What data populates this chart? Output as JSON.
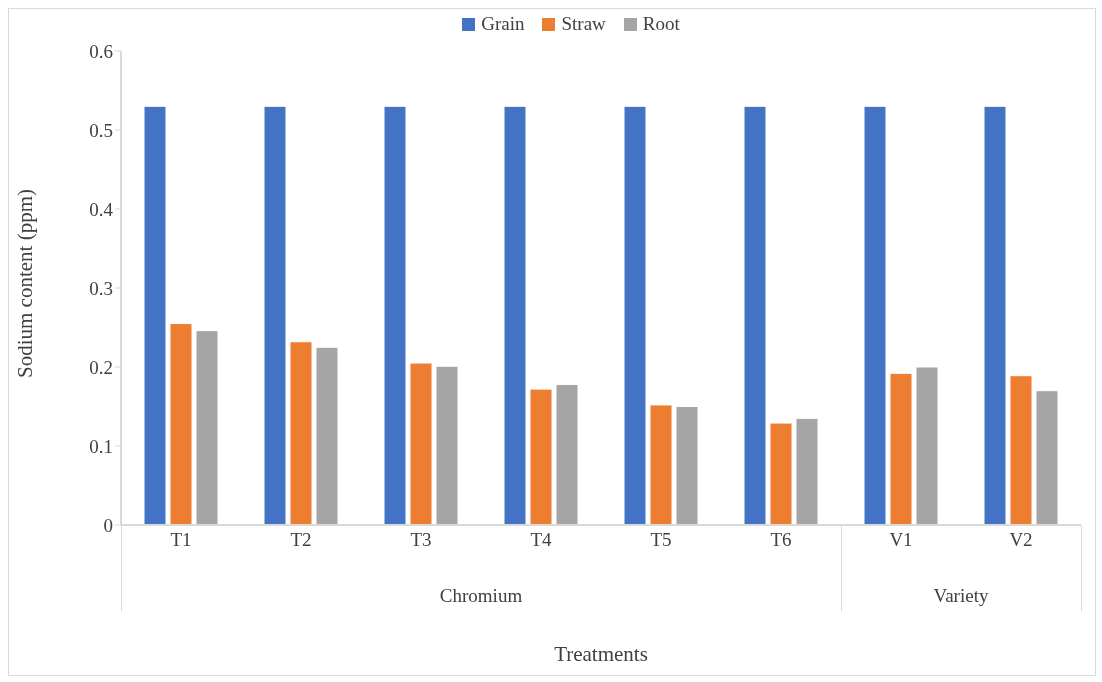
{
  "chart_data": {
    "type": "bar",
    "xlabel": "Treatments",
    "ylabel": "Sodium content (ppm)",
    "categories": [
      "T1",
      "T2",
      "T3",
      "T4",
      "T5",
      "T6",
      "V1",
      "V2"
    ],
    "series": [
      {
        "name": "Grain",
        "color": "#4472c4",
        "values": [
          0.53,
          0.53,
          0.53,
          0.53,
          0.53,
          0.53,
          0.53,
          0.53
        ]
      },
      {
        "name": "Straw",
        "color": "#ed7d31",
        "values": [
          0.255,
          0.232,
          0.205,
          0.172,
          0.152,
          0.129,
          0.192,
          0.189
        ]
      },
      {
        "name": "Root",
        "color": "#a5a5a5",
        "values": [
          0.246,
          0.225,
          0.201,
          0.178,
          0.15,
          0.135,
          0.2,
          0.17
        ]
      }
    ],
    "ylim": [
      0,
      0.6
    ],
    "yticks": [
      0,
      0.1,
      0.2,
      0.3,
      0.4,
      0.5,
      0.6
    ],
    "legend": "top",
    "annotations": [
      "Chromium",
      "Variety"
    ]
  }
}
